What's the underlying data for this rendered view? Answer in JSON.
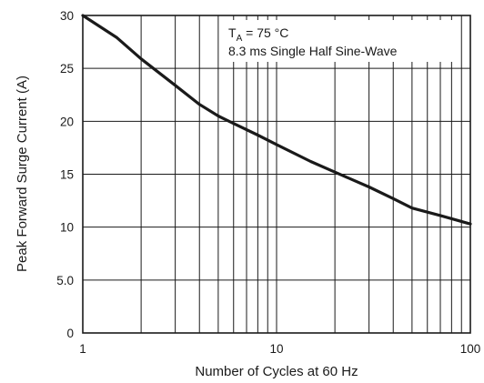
{
  "chart_data": {
    "type": "line",
    "title": "",
    "xlabel": "Number of Cycles at 60 Hz",
    "ylabel": "Peak Forward Surge Current (A)",
    "x_scale": "log",
    "xlim": [
      1,
      100
    ],
    "ylim": [
      0,
      30
    ],
    "grid": true,
    "x_tick_labels": [
      {
        "value": 1,
        "label": "1"
      },
      {
        "value": 10,
        "label": "10"
      },
      {
        "value": 100,
        "label": "100"
      }
    ],
    "y_tick_labels": [
      {
        "value": 0,
        "label": "0"
      },
      {
        "value": 5,
        "label": "5.0"
      },
      {
        "value": 10,
        "label": "10"
      },
      {
        "value": 15,
        "label": "15"
      },
      {
        "value": 20,
        "label": "20"
      },
      {
        "value": 25,
        "label": "25"
      },
      {
        "value": 30,
        "label": "30"
      }
    ],
    "annotations": [
      {
        "main": "T",
        "sub": "A",
        "rest": " = 75 °C"
      },
      {
        "main": "8.3 ms Single Half Sine-Wave"
      }
    ],
    "series": [
      {
        "x": [
          1,
          1.5,
          2,
          3,
          4,
          5,
          6,
          8,
          10,
          15,
          20,
          30,
          40,
          50,
          70,
          100
        ],
        "values": [
          30.0,
          27.9,
          25.9,
          23.4,
          21.6,
          20.5,
          19.8,
          18.7,
          17.8,
          16.2,
          15.2,
          13.8,
          12.7,
          11.8,
          11.1,
          10.3
        ]
      }
    ]
  }
}
